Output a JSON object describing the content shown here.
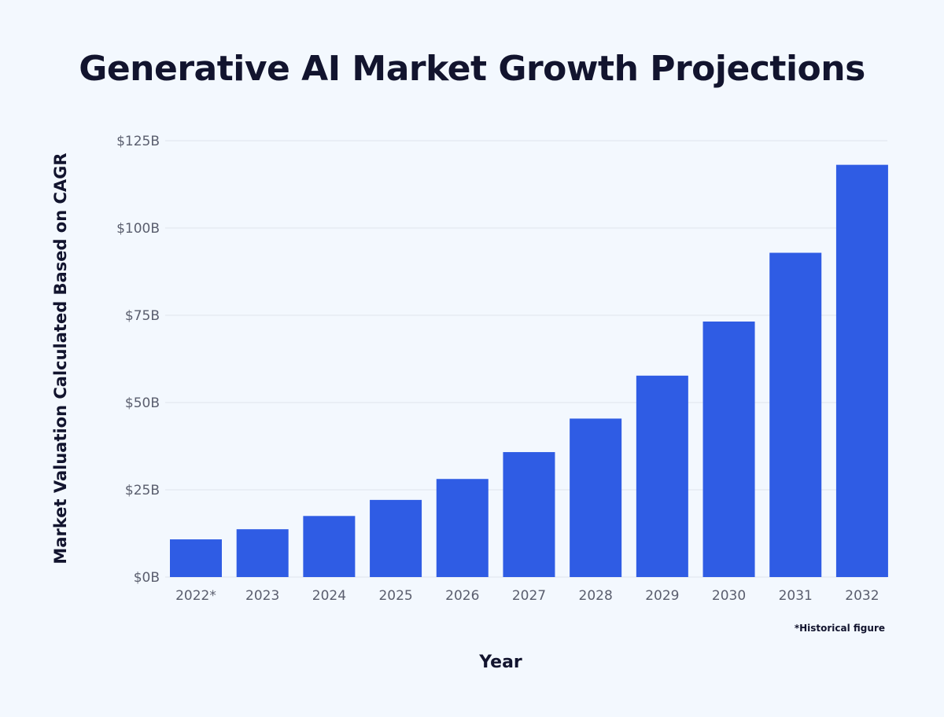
{
  "chart_data": {
    "type": "bar",
    "title": "Generative AI Market Growth Projections",
    "xlabel": "Year",
    "ylabel": "Market Valuation Calculated Based on CAGR",
    "categories": [
      "2022*",
      "2023",
      "2024",
      "2025",
      "2026",
      "2027",
      "2028",
      "2029",
      "2030",
      "2031",
      "2032"
    ],
    "values": [
      10.8,
      13.7,
      17.5,
      22.1,
      28.1,
      35.8,
      45.4,
      57.7,
      73.2,
      92.9,
      118.1
    ],
    "ylim": [
      0,
      125
    ],
    "yticks": [
      0,
      25,
      50,
      75,
      100,
      125
    ],
    "ytick_labels": [
      "$0B",
      "$25B",
      "$50B",
      "$75B",
      "$100B",
      "$125B"
    ],
    "grid": true,
    "bar_color": "#2f5ce4",
    "footnote": "*Historical figure"
  }
}
